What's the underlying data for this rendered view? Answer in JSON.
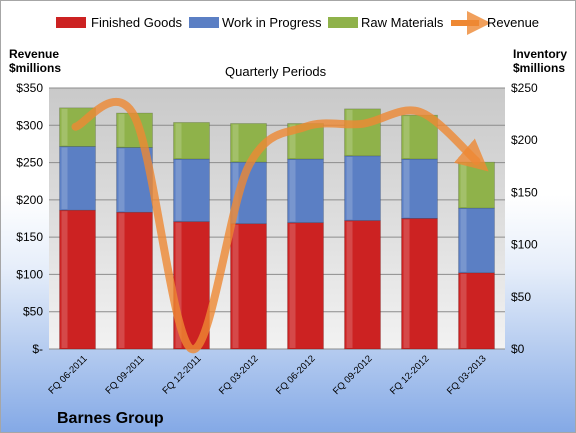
{
  "chart_data": {
    "type": "bar",
    "stacked": true,
    "title": "Quarterly Periods",
    "company": "Barnes Group",
    "categories": [
      "FQ 06-2011",
      "FQ 09-2011",
      "FQ 12-2011",
      "FQ 03-2012",
      "FQ 06-2012",
      "FQ 09-2012",
      "FQ 12-2012",
      "FQ 03-2013"
    ],
    "series": [
      {
        "name": "Finished Goods",
        "color": "#cc2222",
        "values": [
          133,
          131,
          122,
          120,
          121,
          123,
          125,
          73
        ]
      },
      {
        "name": "Work in Progress",
        "color": "#5b7fc4",
        "values": [
          61,
          62,
          60,
          59,
          61,
          62,
          57,
          62
        ]
      },
      {
        "name": "Raw Materials",
        "color": "#8fb24a",
        "values": [
          37,
          33,
          35,
          37,
          34,
          45,
          42,
          44
        ]
      }
    ],
    "line_series": {
      "name": "Revenue",
      "color": "#ee8833",
      "values": [
        298,
        312,
        0,
        245,
        298,
        302,
        318,
        252
      ]
    },
    "left_axis": {
      "title_line1": "Revenue",
      "title_line2": "$millions",
      "ylim": [
        0,
        350
      ],
      "ticks": [
        "$-",
        "$50",
        "$100",
        "$150",
        "$200",
        "$250",
        "$300",
        "$350"
      ]
    },
    "right_axis": {
      "title_line1": "Inventory",
      "title_line2": "$millions",
      "ylim": [
        0,
        250
      ],
      "ticks": [
        "$0",
        "$50",
        "$100",
        "$150",
        "$200",
        "$250"
      ]
    },
    "legend_position": "top",
    "grid": true
  }
}
